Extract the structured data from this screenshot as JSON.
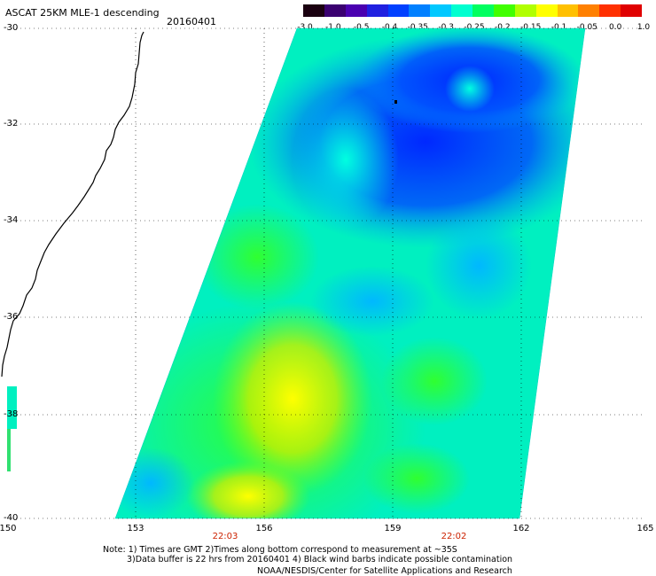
{
  "header": {
    "title": "ASCAT 25KM MLE-1 descending",
    "date": "20160401"
  },
  "colorbar": {
    "labels": [
      "-3.0",
      "-1.0",
      "-0.5",
      "-0.4",
      "-0.35",
      "-0.3",
      "-0.25",
      "-0.2",
      "-0.15",
      "-0.1",
      "-0.05",
      "0.0",
      "1.0"
    ],
    "colors": [
      "#1a0010",
      "#3a0070",
      "#4a00b0",
      "#2020e0",
      "#0040ff",
      "#0080ff",
      "#00c8ff",
      "#00ffd0",
      "#00ff60",
      "#40ff00",
      "#b0ff00",
      "#ffff00",
      "#ffc000",
      "#ff8000",
      "#ff3000",
      "#e00000"
    ]
  },
  "axes": {
    "lat_labels": [
      "-30",
      "-32",
      "-34",
      "-36",
      "-38",
      "-40"
    ],
    "lon_labels": [
      "150",
      "153",
      "156",
      "159",
      "162",
      "165"
    ]
  },
  "times": {
    "t1": "22:03",
    "t2": "22:02"
  },
  "notes": {
    "line1": "Note: 1) Times are GMT 2)Times along bottom correspond to measurement at ~35S",
    "line2": "3)Data buffer is 22 hrs from 20160401 4) Black wind barbs indicate possible contamination",
    "credit": "NOAA/NESDIS/Center for Satellite Applications and Research"
  }
}
